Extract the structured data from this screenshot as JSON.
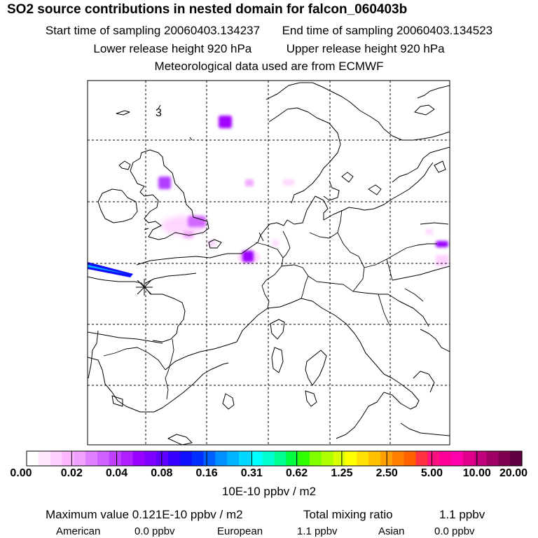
{
  "title": "SO2 source contributions in nested domain for falcon_060403b",
  "sampling": {
    "start": "Start time of sampling 20060403.134237",
    "end": "End time of sampling 20060403.134523"
  },
  "release": {
    "lower": "Lower release height  920 hPa",
    "upper": "Upper release height  920 hPa"
  },
  "met": "Meteorological data used are from ECMWF",
  "map": {
    "grid_annotation": "3",
    "release_marker": "release-point-x"
  },
  "colorbar": {
    "colors": [
      "#ffffff",
      "#ffe8ff",
      "#ffd0ff",
      "#ffb8ff",
      "#f0a0ff",
      "#e080ff",
      "#d060ff",
      "#c040ff",
      "#b020ff",
      "#9900ff",
      "#8000ff",
      "#6000ff",
      "#3a00ff",
      "#1010ff",
      "#0030ff",
      "#0060ff",
      "#0090ff",
      "#00b4ff",
      "#00d8ff",
      "#00ffff",
      "#00ffd0",
      "#00ff90",
      "#00ff40",
      "#30ff00",
      "#80ff00",
      "#b0ff00",
      "#d8ff00",
      "#ffff00",
      "#ffe000",
      "#ffc000",
      "#ffa000",
      "#ff8000",
      "#ff6000",
      "#ff3040",
      "#ff1080",
      "#ff0099",
      "#ff00aa",
      "#e0008c",
      "#c0007a",
      "#a00066",
      "#800050",
      "#600040"
    ],
    "labels": [
      "0.00",
      "0.02",
      "0.04",
      "0.08",
      "0.16",
      "0.31",
      "0.62",
      "1.25",
      "2.50",
      "5.00",
      "10.00",
      "20.00"
    ],
    "units": "10E-10 ppbv / m2"
  },
  "stats": {
    "max_label": "Maximum value  0.121E-10 ppbv / m2",
    "total_label": "Total mixing ratio",
    "total_value": "1.1 ppbv"
  },
  "regions": [
    {
      "name": "American",
      "value": "0.0 ppbv"
    },
    {
      "name": "European",
      "value": "1.1 ppbv"
    },
    {
      "name": "Asian",
      "value": "0.0 ppbv"
    }
  ]
}
